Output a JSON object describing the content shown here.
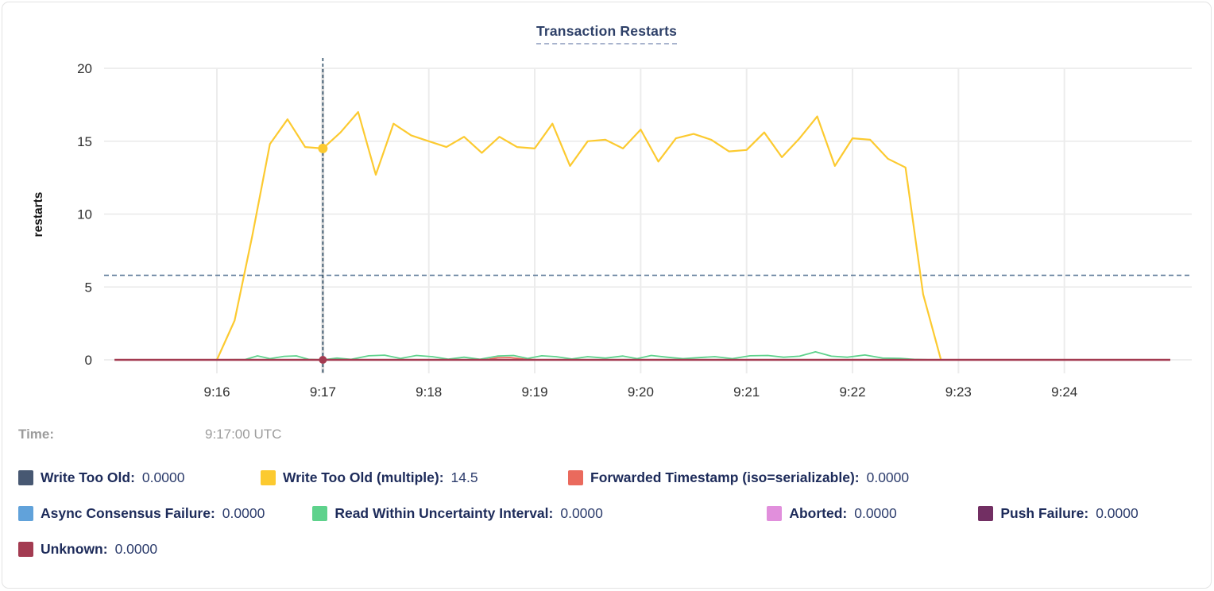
{
  "readout": {
    "time_label": "Time:",
    "time_value": "9:17:00 UTC"
  },
  "chart_data": {
    "type": "line",
    "title": "Transaction Restarts",
    "xlabel": "",
    "ylabel": "restarts",
    "ylim": [
      0,
      20
    ],
    "yticks": [
      0,
      5,
      10,
      15,
      20
    ],
    "grid": true,
    "legend_position": "bottom",
    "x_domain": [
      "9:15:00",
      "9:25:00"
    ],
    "xticks": [
      {
        "t": 60,
        "label": "9:16"
      },
      {
        "t": 120,
        "label": "9:17"
      },
      {
        "t": 180,
        "label": "9:18"
      },
      {
        "t": 240,
        "label": "9:19"
      },
      {
        "t": 300,
        "label": "9:20"
      },
      {
        "t": 360,
        "label": "9:21"
      },
      {
        "t": 420,
        "label": "9:22"
      },
      {
        "t": 480,
        "label": "9:23"
      },
      {
        "t": 540,
        "label": "9:24"
      }
    ],
    "dashed_reference_value": 5.8,
    "crosshair": {
      "t": 120,
      "time": "9:17:00 UTC",
      "hover_points": [
        {
          "series": "Write Too Old (multiple)",
          "value": 14.5,
          "color": "#fcca30"
        },
        {
          "series": "Unknown",
          "value": 0,
          "color": "#a33b51"
        }
      ]
    },
    "series": [
      {
        "name": "Write Too Old",
        "color": "#475872",
        "legend_value": "0.0000",
        "width": 2,
        "points": [
          [
            60,
            0
          ],
          [
            470,
            0
          ]
        ]
      },
      {
        "name": "Write Too Old (multiple)",
        "color": "#fcca30",
        "legend_value": "14.5",
        "width": 2.2,
        "points": [
          [
            60,
            0
          ],
          [
            70,
            2.7
          ],
          [
            80,
            8.5
          ],
          [
            90,
            14.8
          ],
          [
            100,
            16.5
          ],
          [
            110,
            14.6
          ],
          [
            120,
            14.5
          ],
          [
            130,
            15.6
          ],
          [
            140,
            17.0
          ],
          [
            150,
            12.7
          ],
          [
            160,
            16.2
          ],
          [
            170,
            15.4
          ],
          [
            180,
            15.0
          ],
          [
            190,
            14.6
          ],
          [
            200,
            15.3
          ],
          [
            210,
            14.2
          ],
          [
            220,
            15.3
          ],
          [
            230,
            14.6
          ],
          [
            240,
            14.5
          ],
          [
            250,
            16.2
          ],
          [
            260,
            13.3
          ],
          [
            270,
            15.0
          ],
          [
            280,
            15.1
          ],
          [
            290,
            14.5
          ],
          [
            300,
            15.8
          ],
          [
            310,
            13.6
          ],
          [
            320,
            15.2
          ],
          [
            330,
            15.5
          ],
          [
            340,
            15.1
          ],
          [
            350,
            14.3
          ],
          [
            360,
            14.4
          ],
          [
            370,
            15.6
          ],
          [
            380,
            13.9
          ],
          [
            390,
            15.2
          ],
          [
            400,
            16.7
          ],
          [
            410,
            13.3
          ],
          [
            420,
            15.2
          ],
          [
            430,
            15.1
          ],
          [
            440,
            13.8
          ],
          [
            450,
            13.2
          ],
          [
            460,
            4.5
          ],
          [
            470,
            0.05
          ]
        ]
      },
      {
        "name": "Forwarded Timestamp (iso=serializable)",
        "color": "#ea6a5d",
        "legend_value": "0.0000",
        "width": 1.8,
        "points": [
          [
            60,
            0
          ],
          [
            212,
            0
          ],
          [
            219,
            0.14
          ],
          [
            226,
            0.16
          ],
          [
            234,
            0.05
          ],
          [
            242,
            0
          ],
          [
            470,
            0
          ]
        ]
      },
      {
        "name": "Async Consensus Failure",
        "color": "#61a2da",
        "legend_value": "0.0000",
        "width": 1.8,
        "points": [
          [
            60,
            0
          ],
          [
            470,
            0
          ]
        ]
      },
      {
        "name": "Read Within Uncertainty Interval",
        "color": "#5ed28c",
        "legend_value": "0.0000",
        "width": 1.8,
        "points": [
          [
            60,
            0
          ],
          [
            76,
            0.02
          ],
          [
            83,
            0.27
          ],
          [
            90,
            0.08
          ],
          [
            98,
            0.24
          ],
          [
            105,
            0.27
          ],
          [
            112,
            0.03
          ],
          [
            120,
            0
          ],
          [
            128,
            0.12
          ],
          [
            136,
            0.03
          ],
          [
            146,
            0.28
          ],
          [
            155,
            0.32
          ],
          [
            164,
            0.1
          ],
          [
            173,
            0.3
          ],
          [
            182,
            0.22
          ],
          [
            191,
            0.05
          ],
          [
            200,
            0.18
          ],
          [
            209,
            0.04
          ],
          [
            219,
            0.26
          ],
          [
            228,
            0.3
          ],
          [
            236,
            0.1
          ],
          [
            244,
            0.28
          ],
          [
            252,
            0.22
          ],
          [
            261,
            0.06
          ],
          [
            270,
            0.22
          ],
          [
            280,
            0.12
          ],
          [
            290,
            0.26
          ],
          [
            298,
            0.08
          ],
          [
            306,
            0.3
          ],
          [
            315,
            0.18
          ],
          [
            324,
            0.08
          ],
          [
            333,
            0.15
          ],
          [
            342,
            0.22
          ],
          [
            352,
            0.08
          ],
          [
            362,
            0.28
          ],
          [
            372,
            0.3
          ],
          [
            381,
            0.18
          ],
          [
            390,
            0.25
          ],
          [
            399,
            0.55
          ],
          [
            408,
            0.25
          ],
          [
            417,
            0.18
          ],
          [
            427,
            0.33
          ],
          [
            437,
            0.12
          ],
          [
            447,
            0.1
          ],
          [
            455,
            0.03
          ],
          [
            465,
            0
          ],
          [
            470,
            0
          ]
        ]
      },
      {
        "name": "Aborted",
        "color": "#e18fdc",
        "legend_value": "0.0000",
        "width": 1.8,
        "points": [
          [
            60,
            0
          ],
          [
            470,
            0
          ]
        ]
      },
      {
        "name": "Push Failure",
        "color": "#722f63",
        "legend_value": "0.0000",
        "width": 1.8,
        "points": [
          [
            60,
            0
          ],
          [
            470,
            0
          ]
        ]
      },
      {
        "name": "Unknown",
        "color": "#a33b51",
        "legend_value": "0.0000",
        "width": 2.4,
        "points": [
          [
            2,
            0
          ],
          [
            600,
            0
          ]
        ]
      }
    ]
  }
}
